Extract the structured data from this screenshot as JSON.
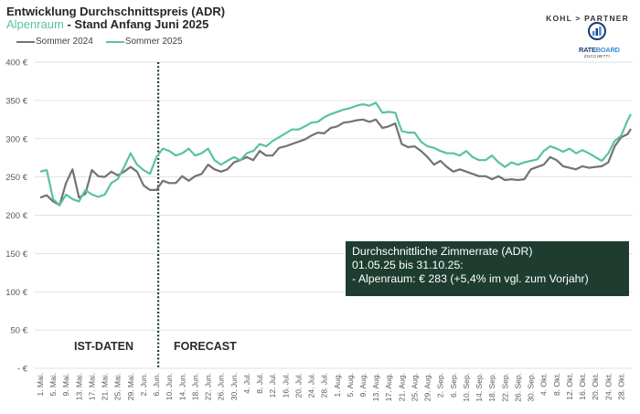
{
  "header": {
    "title_line1": "Entwicklung Durchschnittspreis (ADR)",
    "title_accent": "Alpenraum",
    "title_rest": " - Stand Anfang Juni 2025"
  },
  "logos": {
    "kohl_partner": "KOHL > PARTNER",
    "rateboard_rate": "RATE",
    "rateboard_board": "BOARD",
    "zucchetti": "ZUCCHETTI"
  },
  "annotation": {
    "line1": "Durchschnittliche Zimmerrate (ADR)",
    "line2": "01.05.25 bis 31.10.25:",
    "line3": "- Alpenraum:  € 283 (+5,4% im vgl. zum Vorjahr)"
  },
  "phases": {
    "actual": "IST-DATEN",
    "forecast": "FORECAST"
  },
  "colors": {
    "series_2024": "#737373",
    "series_2025": "#5cc29e",
    "annotation_bg": "#1e3d30",
    "grid": "#d9d9d9"
  },
  "chart_data": {
    "type": "line",
    "title": "Entwicklung Durchschnittspreis (ADR) Alpenraum - Stand Anfang Juni 2025",
    "xlabel": "",
    "ylabel": "",
    "ylim": [
      0,
      400
    ],
    "y_ticks": [
      0,
      50,
      100,
      150,
      200,
      250,
      300,
      350,
      400
    ],
    "y_tick_labels": [
      "- €",
      "50 €",
      "100 €",
      "150 €",
      "200 €",
      "250 €",
      "300 €",
      "350 €",
      "400 €"
    ],
    "grid": true,
    "legend_placement": "top-left",
    "x_range_days": [
      0,
      183
    ],
    "x_step_days": 2,
    "forecast_start_day": 37,
    "x_tick_labels": [
      "1. Mai.",
      "5. Mai.",
      "9. Mai.",
      "13. Mai.",
      "17. Mai.",
      "21. Mai.",
      "25. Mai.",
      "29. Mai.",
      "2. Jun.",
      "6. Jun.",
      "10. Jun.",
      "14. Jun.",
      "18. Jun.",
      "22. Jun.",
      "26. Jun.",
      "30. Jun.",
      "4. Jul.",
      "8. Jul.",
      "12. Jul.",
      "16. Jul.",
      "20. Jul.",
      "24. Jul.",
      "28. Jul.",
      "1. Aug.",
      "5. Aug.",
      "9. Aug.",
      "13. Aug.",
      "17. Aug.",
      "21. Aug.",
      "25. Aug.",
      "29. Aug.",
      "2. Sep.",
      "6. Sep.",
      "10. Sep.",
      "14. Sep.",
      "18. Sep.",
      "22. Sep.",
      "26. Sep.",
      "30. Sep.",
      "4. Okt.",
      "8. Okt.",
      "12. Okt.",
      "16. Okt.",
      "20. Okt.",
      "24. Okt.",
      "28. Okt."
    ],
    "series": [
      {
        "name": "Sommer 2024",
        "values": [
          223,
          226,
          218,
          213,
          242,
          260,
          223,
          228,
          259,
          251,
          250,
          257,
          252,
          257,
          263,
          257,
          239,
          233,
          233,
          245,
          242,
          242,
          251,
          245,
          251,
          254,
          266,
          260,
          257,
          260,
          269,
          272,
          276,
          272,
          284,
          278,
          278,
          288,
          290,
          293,
          296,
          299,
          304,
          308,
          307,
          314,
          316,
          321,
          322,
          324,
          325,
          322,
          325,
          314,
          316,
          320,
          293,
          289,
          290,
          284,
          276,
          266,
          271,
          263,
          257,
          260,
          257,
          254,
          251,
          251,
          247,
          251,
          246,
          247,
          246,
          247,
          260,
          263,
          266,
          276,
          272,
          264,
          262,
          260,
          264,
          262,
          263,
          264,
          269,
          290,
          302,
          306,
          313
        ]
      },
      {
        "name": "Sommer 2025",
        "values": [
          257,
          259,
          221,
          213,
          227,
          221,
          218,
          233,
          227,
          224,
          227,
          242,
          247,
          263,
          281,
          266,
          259,
          254,
          276,
          287,
          284,
          278,
          281,
          287,
          278,
          281,
          287,
          272,
          266,
          271,
          276,
          272,
          281,
          284,
          293,
          290,
          297,
          302,
          307,
          312,
          312,
          316,
          321,
          322,
          328,
          332,
          335,
          338,
          340,
          343,
          345,
          343,
          347,
          334,
          335,
          334,
          310,
          308,
          308,
          296,
          290,
          288,
          284,
          281,
          281,
          278,
          284,
          276,
          272,
          272,
          278,
          269,
          263,
          269,
          266,
          269,
          271,
          273,
          284,
          290,
          287,
          283,
          287,
          281,
          285,
          281,
          276,
          271,
          281,
          297,
          304,
          324,
          332
        ]
      }
    ]
  }
}
